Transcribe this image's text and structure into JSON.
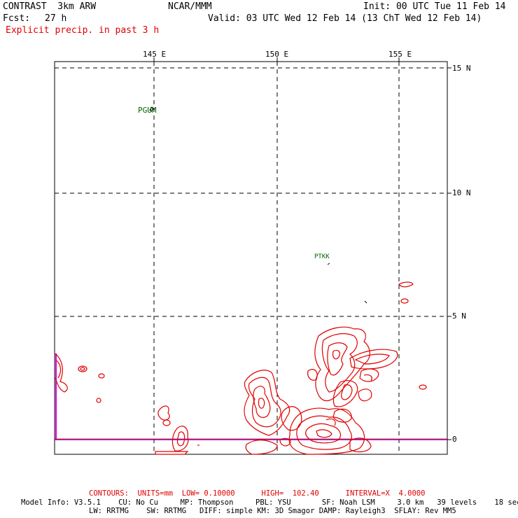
{
  "header": {
    "model": "CONTRAST  3km ARW",
    "org": "NCAR/MMM",
    "init": "Init: 00 UTC Tue 11 Feb 14",
    "fcst_label": "Fcst:",
    "fcst_value": "27 h",
    "valid": "Valid: 03 UTC Wed 12 Feb 14 (13 ChT Wed 12 Feb 14)",
    "field": "Explicit precip. in past 3 h"
  },
  "map": {
    "lon_labels": [
      "145 E",
      "150 E",
      "155 E"
    ],
    "lat_labels": [
      "15 N",
      "10 N",
      "5 N",
      "0"
    ],
    "stations": [
      "PGUM",
      "PTKK"
    ],
    "colors": {
      "contour": "#e00000",
      "equator": "#8000c0",
      "station": "#006400",
      "grid": "#000000"
    }
  },
  "footer": {
    "contours": "CONTOURS:  UNITS=mm  LOW= 0.10000      HIGH=  102.40      INTERVAL=X  4.0000",
    "model_info_1": "Model Info: V3.5.1    CU: No Cu     MP: Thompson     PBL: YSU       SF: Noah LSM     3.0 km   39 levels    18 sec",
    "model_info_2": "LW: RRTMG    SW: RRTMG   DIFF: simple KM: 3D Smagor DAMP: Rayleigh3  SFLAY: Rev MM5"
  }
}
